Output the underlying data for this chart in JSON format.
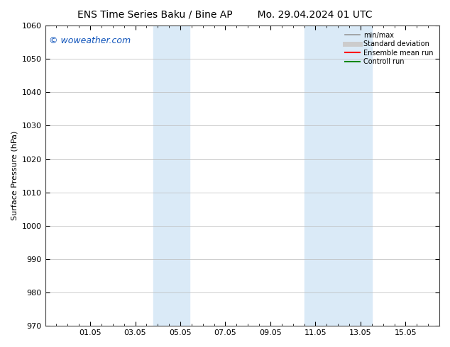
{
  "title_left": "ENS Time Series Baku / Bine AP",
  "title_right": "Mo. 29.04.2024 01 UTC",
  "ylabel": "Surface Pressure (hPa)",
  "ylim": [
    970,
    1060
  ],
  "yticks": [
    970,
    980,
    990,
    1000,
    1010,
    1020,
    1030,
    1040,
    1050,
    1060
  ],
  "xtick_labels": [
    "01.05",
    "03.05",
    "05.05",
    "07.05",
    "09.05",
    "11.05",
    "13.05",
    "15.05"
  ],
  "xtick_positions": [
    2.0,
    4.0,
    6.0,
    8.0,
    10.0,
    12.0,
    14.0,
    16.0
  ],
  "xlim": [
    0,
    17.5
  ],
  "shaded_bands": [
    {
      "xmin": 4.8,
      "xmax": 6.4
    },
    {
      "xmin": 11.5,
      "xmax": 14.5
    }
  ],
  "shade_color": "#daeaf7",
  "watermark_text": "© woweather.com",
  "watermark_color": "#1155bb",
  "legend_items": [
    {
      "label": "min/max",
      "color": "#999999",
      "lw": 1.2,
      "style": "solid"
    },
    {
      "label": "Standard deviation",
      "color": "#cccccc",
      "lw": 5,
      "style": "solid"
    },
    {
      "label": "Ensemble mean run",
      "color": "#ff0000",
      "lw": 1.5,
      "style": "solid"
    },
    {
      "label": "Controll run",
      "color": "#008800",
      "lw": 1.5,
      "style": "solid"
    }
  ],
  "bg_color": "#ffffff",
  "grid_color": "#bbbbbb",
  "title_fontsize": 10,
  "axis_fontsize": 8,
  "tick_fontsize": 8,
  "watermark_fontsize": 9,
  "legend_fontsize": 7
}
